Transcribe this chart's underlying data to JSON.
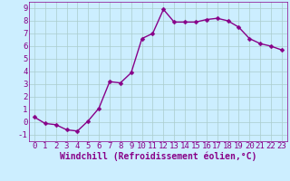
{
  "x": [
    0,
    1,
    2,
    3,
    4,
    5,
    6,
    7,
    8,
    9,
    10,
    11,
    12,
    13,
    14,
    15,
    16,
    17,
    18,
    19,
    20,
    21,
    22,
    23
  ],
  "y": [
    0.4,
    -0.1,
    -0.2,
    -0.6,
    -0.7,
    0.1,
    1.1,
    3.2,
    3.1,
    3.9,
    6.6,
    7.0,
    8.9,
    7.9,
    7.9,
    7.9,
    8.1,
    8.2,
    8.0,
    7.5,
    6.6,
    6.2,
    6.0,
    5.7
  ],
  "line_color": "#880088",
  "marker": "D",
  "marker_size": 2.5,
  "bg_color": "#cceeff",
  "grid_color": "#aacccc",
  "xlabel": "Windchill (Refroidissement éolien,°C)",
  "xlabel_color": "#880088",
  "xlim": [
    -0.5,
    23.5
  ],
  "ylim": [
    -1.5,
    9.5
  ],
  "yticks": [
    -1,
    0,
    1,
    2,
    3,
    4,
    5,
    6,
    7,
    8,
    9
  ],
  "xticks": [
    0,
    1,
    2,
    3,
    4,
    5,
    6,
    7,
    8,
    9,
    10,
    11,
    12,
    13,
    14,
    15,
    16,
    17,
    18,
    19,
    20,
    21,
    22,
    23
  ],
  "tick_color": "#880088",
  "tick_fontsize": 6.5,
  "xlabel_fontsize": 7,
  "linewidth": 1.0
}
